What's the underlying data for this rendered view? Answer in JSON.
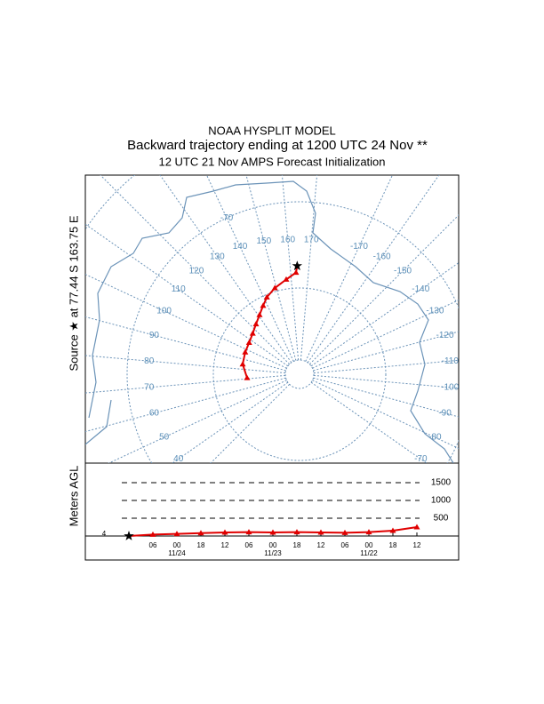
{
  "header": {
    "model": "NOAA HYSPLIT MODEL",
    "title": "Backward trajectory ending at 1200 UTC 24 Nov **",
    "subtitle": "12 UTC 21 Nov    AMPS  Forecast Initialization"
  },
  "map": {
    "source_label": "Source ★ at  77.44 S  163.75 E",
    "lat_circles": [
      -80,
      -70,
      -60
    ],
    "lat_labels": [
      {
        "value": -70,
        "label": "-70"
      }
    ],
    "meridian_labels": [
      30,
      40,
      50,
      60,
      70,
      80,
      90,
      100,
      110,
      120,
      130,
      140,
      150,
      160,
      170,
      -170,
      -160,
      -150,
      -140,
      -130,
      -120,
      -110,
      -100,
      -90,
      -80,
      -70
    ]
  },
  "trajectory": {
    "color": "#e00000",
    "lat": [
      -77.44,
      -78.2,
      -78.9,
      -79.6,
      -80.3,
      -81.0,
      -81.7,
      -82.3,
      -82.8,
      -83.1,
      -83.2,
      -83.3,
      -83.9
    ],
    "lon": [
      163.75,
      163,
      157,
      149,
      142,
      137,
      131,
      124,
      116,
      107,
      97,
      85,
      71
    ],
    "height": [
      0,
      40,
      60,
      80,
      100,
      110,
      100,
      110,
      100,
      90,
      110,
      150,
      250
    ]
  },
  "vertical": {
    "ylabel": "Meters AGL",
    "source_level_label": "4",
    "ylim": [
      0,
      2000
    ],
    "yticks": [
      500,
      1000,
      1500
    ],
    "hour_labels": [
      null,
      "06",
      "00",
      "18",
      "12",
      "06",
      "00",
      "18",
      "12",
      "06",
      "00",
      "18",
      "12"
    ],
    "date_labels": [
      null,
      null,
      "11/24",
      null,
      null,
      null,
      "11/23",
      null,
      null,
      null,
      "11/22",
      null,
      null
    ]
  }
}
